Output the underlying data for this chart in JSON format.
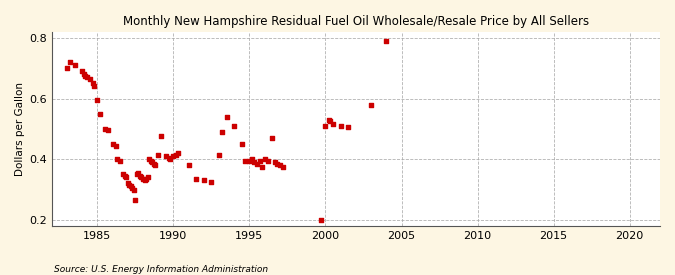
{
  "title": "Monthly New Hampshire Residual Fuel Oil Wholesale/Resale Price by All Sellers",
  "ylabel": "Dollars per Gallon",
  "source": "Source: U.S. Energy Information Administration",
  "fig_facecolor": "#fdf6e3",
  "plot_facecolor": "#ffffff",
  "marker_color": "#cc0000",
  "xlim": [
    1982,
    2022
  ],
  "ylim": [
    0.18,
    0.82
  ],
  "xticks": [
    1985,
    1990,
    1995,
    2000,
    2005,
    2010,
    2015,
    2020
  ],
  "yticks": [
    0.2,
    0.4,
    0.6,
    0.8
  ],
  "data": [
    [
      1983.0,
      0.7
    ],
    [
      1983.2,
      0.72
    ],
    [
      1983.5,
      0.71
    ],
    [
      1984.0,
      0.69
    ],
    [
      1984.1,
      0.68
    ],
    [
      1984.2,
      0.675
    ],
    [
      1984.3,
      0.67
    ],
    [
      1984.5,
      0.665
    ],
    [
      1984.7,
      0.65
    ],
    [
      1984.8,
      0.64
    ],
    [
      1985.0,
      0.595
    ],
    [
      1985.2,
      0.55
    ],
    [
      1985.5,
      0.5
    ],
    [
      1985.7,
      0.495
    ],
    [
      1986.0,
      0.45
    ],
    [
      1986.2,
      0.445
    ],
    [
      1986.3,
      0.4
    ],
    [
      1986.5,
      0.395
    ],
    [
      1986.7,
      0.35
    ],
    [
      1986.8,
      0.345
    ],
    [
      1986.9,
      0.34
    ],
    [
      1987.0,
      0.32
    ],
    [
      1987.1,
      0.315
    ],
    [
      1987.2,
      0.31
    ],
    [
      1987.3,
      0.305
    ],
    [
      1987.4,
      0.3
    ],
    [
      1987.5,
      0.265
    ],
    [
      1987.6,
      0.35
    ],
    [
      1987.7,
      0.355
    ],
    [
      1987.8,
      0.345
    ],
    [
      1987.9,
      0.34
    ],
    [
      1988.0,
      0.335
    ],
    [
      1988.1,
      0.33
    ],
    [
      1988.2,
      0.335
    ],
    [
      1988.3,
      0.34
    ],
    [
      1988.4,
      0.4
    ],
    [
      1988.5,
      0.395
    ],
    [
      1988.6,
      0.39
    ],
    [
      1988.7,
      0.385
    ],
    [
      1988.8,
      0.38
    ],
    [
      1989.0,
      0.415
    ],
    [
      1989.2,
      0.475
    ],
    [
      1989.5,
      0.41
    ],
    [
      1989.7,
      0.405
    ],
    [
      1989.8,
      0.4
    ],
    [
      1990.0,
      0.41
    ],
    [
      1990.2,
      0.415
    ],
    [
      1990.3,
      0.42
    ],
    [
      1991.0,
      0.38
    ],
    [
      1991.5,
      0.335
    ],
    [
      1992.0,
      0.33
    ],
    [
      1992.5,
      0.325
    ],
    [
      1993.0,
      0.415
    ],
    [
      1993.2,
      0.49
    ],
    [
      1993.5,
      0.54
    ],
    [
      1994.0,
      0.51
    ],
    [
      1994.5,
      0.45
    ],
    [
      1994.7,
      0.395
    ],
    [
      1995.0,
      0.395
    ],
    [
      1995.2,
      0.4
    ],
    [
      1995.3,
      0.39
    ],
    [
      1995.5,
      0.385
    ],
    [
      1995.7,
      0.395
    ],
    [
      1995.8,
      0.375
    ],
    [
      1996.0,
      0.4
    ],
    [
      1996.2,
      0.395
    ],
    [
      1996.5,
      0.47
    ],
    [
      1996.7,
      0.39
    ],
    [
      1996.8,
      0.385
    ],
    [
      1997.0,
      0.38
    ],
    [
      1997.2,
      0.375
    ],
    [
      1999.7,
      0.2
    ],
    [
      2000.0,
      0.51
    ],
    [
      2000.2,
      0.53
    ],
    [
      2000.3,
      0.525
    ],
    [
      2000.5,
      0.515
    ],
    [
      2001.0,
      0.51
    ],
    [
      2001.5,
      0.505
    ],
    [
      2003.0,
      0.58
    ],
    [
      2004.0,
      0.79
    ]
  ]
}
